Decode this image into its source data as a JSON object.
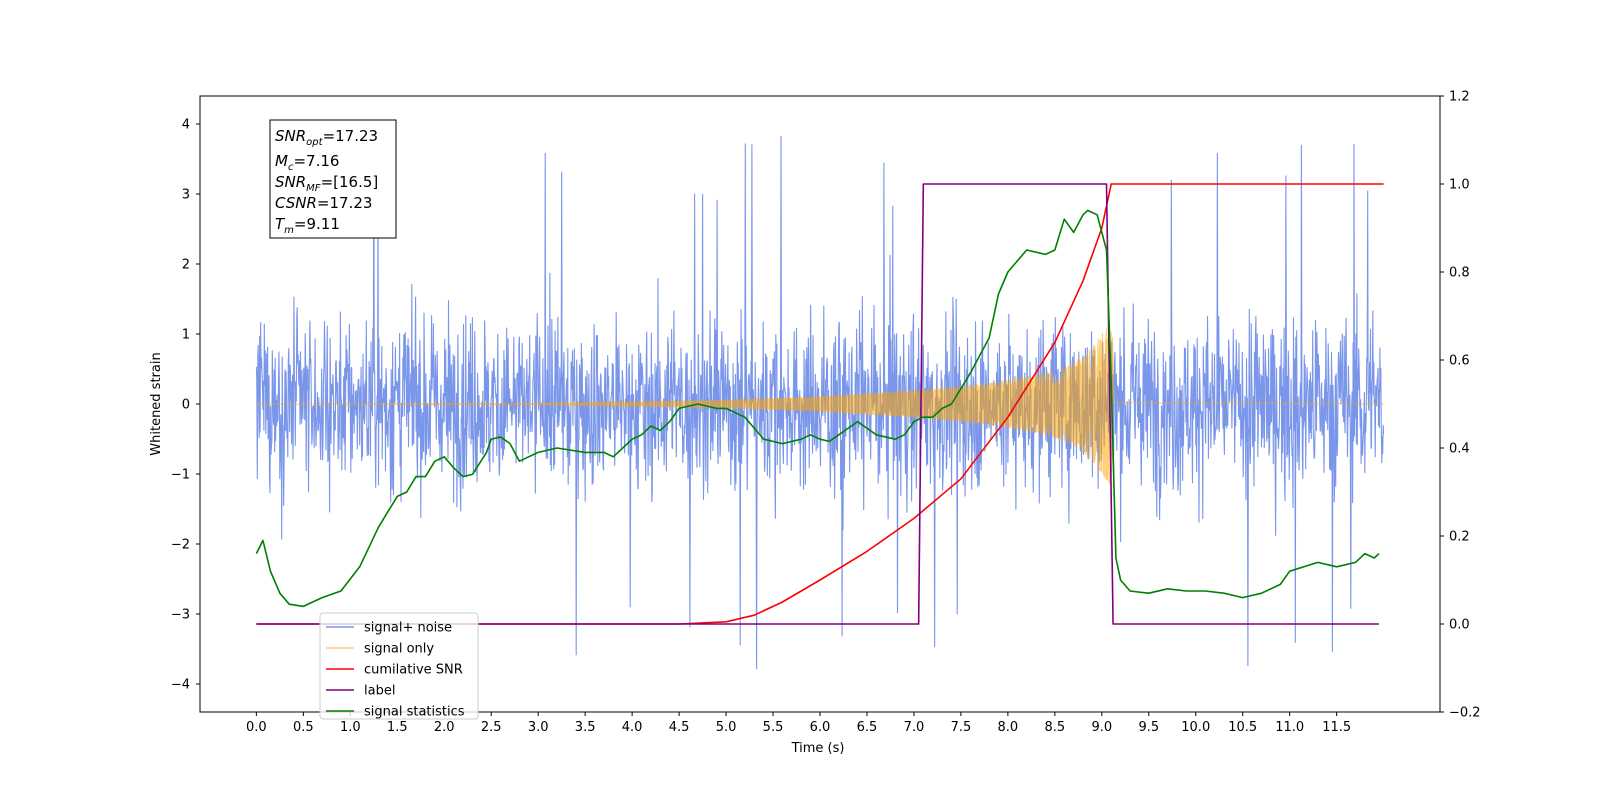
{
  "chart_data": {
    "type": "line",
    "xlabel": "Time (s)",
    "ylabel_left": "Whitened strain",
    "ylabel_right": "",
    "x_range": [
      -0.6,
      12.6
    ],
    "ylim_left": [
      -4.4,
      4.4
    ],
    "ylim_right": [
      -0.2,
      1.2
    ],
    "x_ticks": [
      "0.0",
      "0.5",
      "1.0",
      "1.5",
      "2.0",
      "2.5",
      "3.0",
      "3.5",
      "4.0",
      "4.5",
      "5.0",
      "5.5",
      "6.0",
      "6.5",
      "7.0",
      "7.5",
      "8.0",
      "8.5",
      "9.0",
      "9.5",
      "10.0",
      "10.5",
      "11.0",
      "11.5"
    ],
    "y_ticks_left": [
      "−4",
      "−3",
      "−2",
      "−1",
      "0",
      "1",
      "2",
      "3",
      "4"
    ],
    "y_ticks_right": [
      "−0.2",
      "0.0",
      "0.2",
      "0.4",
      "0.6",
      "0.8",
      "1.0",
      "1.2"
    ],
    "grid": false,
    "legend_position": "lower-left",
    "annotation": {
      "lines": [
        {
          "label": "SNR",
          "sub": "opt",
          "value": "=17.23"
        },
        {
          "label": "M",
          "sub": "c",
          "value": "=7.16"
        },
        {
          "label": "SNR",
          "sub": "MF",
          "value": "=[16.5]"
        },
        {
          "label": "CSNR",
          "sub": "",
          "value": "=17.23"
        },
        {
          "label": "T",
          "sub": "m",
          "value": "=9.11"
        }
      ]
    },
    "series": [
      {
        "name": "signal+ noise",
        "axis": "left",
        "color": "#4169e1",
        "kind": "noise_band",
        "x_start": 0.0,
        "x_end": 12.0,
        "typical_amplitude": 1.6,
        "peak_max": 3.9,
        "peak_min": -4.1
      },
      {
        "name": "signal only",
        "axis": "left",
        "color": "#ffa500",
        "kind": "chirp_envelope",
        "envelope_x": [
          0.0,
          3.0,
          4.0,
          5.0,
          6.0,
          7.0,
          7.5,
          8.0,
          8.3,
          8.6,
          8.8,
          9.0,
          9.11,
          9.13,
          12.0
        ],
        "envelope_amp": [
          0.0,
          0.01,
          0.03,
          0.06,
          0.11,
          0.2,
          0.26,
          0.35,
          0.42,
          0.53,
          0.68,
          1.0,
          1.2,
          0.02,
          0.0
        ]
      },
      {
        "name": "cumilative SNR",
        "axis": "right",
        "color": "#ff0000",
        "x": [
          0.0,
          4.5,
          5.0,
          5.3,
          5.6,
          6.0,
          6.5,
          7.0,
          7.5,
          8.0,
          8.5,
          8.8,
          9.0,
          9.1,
          9.12,
          12.0
        ],
        "y": [
          0.0,
          0.0,
          0.005,
          0.02,
          0.05,
          0.1,
          0.165,
          0.24,
          0.33,
          0.47,
          0.64,
          0.78,
          0.9,
          1.0,
          1.0,
          1.0
        ]
      },
      {
        "name": "label",
        "axis": "right",
        "color": "#800080",
        "x": [
          0.0,
          7.05,
          7.1,
          9.05,
          9.12,
          11.95
        ],
        "y": [
          0.0,
          0.0,
          1.0,
          1.0,
          0.0,
          0.0
        ]
      },
      {
        "name": "signal statistics",
        "axis": "right",
        "color": "#008000",
        "x": [
          0.0,
          0.07,
          0.15,
          0.25,
          0.35,
          0.5,
          0.7,
          0.9,
          1.1,
          1.3,
          1.5,
          1.6,
          1.7,
          1.8,
          1.9,
          2.0,
          2.1,
          2.2,
          2.3,
          2.45,
          2.5,
          2.6,
          2.7,
          2.8,
          3.0,
          3.2,
          3.5,
          3.7,
          3.8,
          3.9,
          4.0,
          4.1,
          4.2,
          4.3,
          4.4,
          4.5,
          4.7,
          4.9,
          5.0,
          5.2,
          5.4,
          5.6,
          5.8,
          5.9,
          6.0,
          6.1,
          6.2,
          6.4,
          6.6,
          6.8,
          6.9,
          7.0,
          7.1,
          7.2,
          7.3,
          7.4,
          7.6,
          7.8,
          7.9,
          8.0,
          8.2,
          8.4,
          8.5,
          8.6,
          8.7,
          8.8,
          8.85,
          8.95,
          9.05,
          9.1,
          9.15,
          9.2,
          9.3,
          9.5,
          9.7,
          9.9,
          10.1,
          10.3,
          10.5,
          10.7,
          10.9,
          11.0,
          11.3,
          11.5,
          11.7,
          11.8,
          11.9,
          11.95
        ],
        "y": [
          0.16,
          0.19,
          0.12,
          0.07,
          0.045,
          0.04,
          0.06,
          0.075,
          0.13,
          0.22,
          0.29,
          0.3,
          0.335,
          0.335,
          0.37,
          0.38,
          0.355,
          0.335,
          0.34,
          0.39,
          0.42,
          0.425,
          0.41,
          0.37,
          0.39,
          0.4,
          0.39,
          0.39,
          0.38,
          0.4,
          0.42,
          0.43,
          0.45,
          0.44,
          0.46,
          0.49,
          0.5,
          0.49,
          0.49,
          0.47,
          0.42,
          0.41,
          0.42,
          0.43,
          0.42,
          0.415,
          0.43,
          0.46,
          0.43,
          0.42,
          0.43,
          0.46,
          0.47,
          0.47,
          0.49,
          0.5,
          0.57,
          0.65,
          0.75,
          0.8,
          0.85,
          0.84,
          0.85,
          0.92,
          0.89,
          0.93,
          0.94,
          0.93,
          0.85,
          0.55,
          0.15,
          0.1,
          0.075,
          0.07,
          0.08,
          0.075,
          0.075,
          0.07,
          0.06,
          0.07,
          0.09,
          0.12,
          0.14,
          0.13,
          0.14,
          0.16,
          0.15,
          0.16
        ]
      }
    ]
  }
}
